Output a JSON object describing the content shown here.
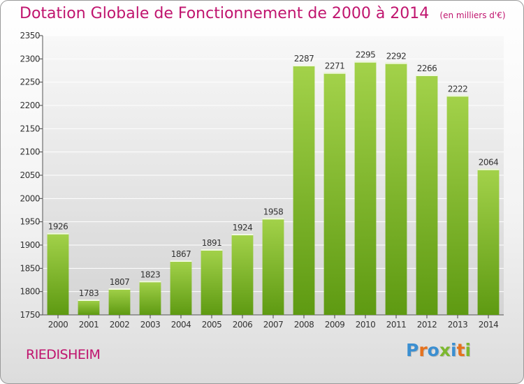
{
  "header": {
    "title": "Dotation Globale de Fonctionnement de 2000 à 2014",
    "units": "(en milliers d'€)"
  },
  "footer": {
    "city": "RIEDISHEIM",
    "brand": "Proxiti"
  },
  "colors": {
    "accent": "#c0146e",
    "bar_top": "#a3d24a",
    "bar_bottom": "#5e9a12",
    "plot_bg_top": "#f8f8f8",
    "plot_bg_bottom": "#d4d4d4",
    "brand_letters": [
      "#3b8fd1",
      "#e6721e",
      "#3b8fd1",
      "#7cb82f",
      "#3b8fd1",
      "#e6721e",
      "#7cb82f"
    ]
  },
  "chart_data": {
    "type": "bar",
    "categories": [
      "2000",
      "2001",
      "2002",
      "2003",
      "2004",
      "2005",
      "2006",
      "2007",
      "2008",
      "2009",
      "2010",
      "2011",
      "2012",
      "2013",
      "2014"
    ],
    "values": [
      1926,
      1783,
      1807,
      1823,
      1867,
      1891,
      1924,
      1958,
      2287,
      2271,
      2295,
      2292,
      2266,
      2222,
      2064
    ],
    "ylim": [
      1750,
      2350
    ],
    "yticks": [
      1750,
      1800,
      1850,
      1900,
      1950,
      2000,
      2050,
      2100,
      2150,
      2200,
      2250,
      2300,
      2350
    ],
    "grid": true,
    "data_labels": true,
    "legend": "none"
  }
}
